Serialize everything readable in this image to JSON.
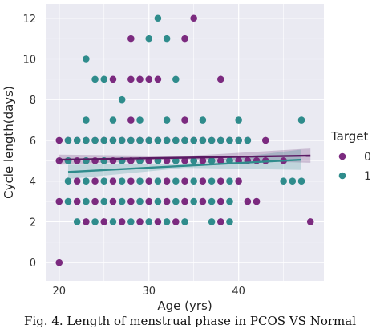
{
  "chart_data": {
    "type": "scatter",
    "xlabel": "Age (yrs)",
    "ylabel": "Cycle length(days)",
    "xlim": [
      18.5,
      49.5
    ],
    "ylim": [
      -0.9,
      12.7
    ],
    "x_ticks": [
      20,
      30,
      40
    ],
    "y_ticks": [
      0,
      2,
      4,
      6,
      8,
      10,
      12
    ],
    "grid": true,
    "background": "#eaeaf2",
    "legend": {
      "title": "Target",
      "placement": "right"
    },
    "series": [
      {
        "name": "0",
        "color": "#7b2a7f",
        "points": [
          [
            20,
            6
          ],
          [
            21,
            6
          ],
          [
            22,
            6
          ],
          [
            23,
            6
          ],
          [
            24,
            6
          ],
          [
            25,
            6
          ],
          [
            26,
            6
          ],
          [
            27,
            6
          ],
          [
            28,
            6
          ],
          [
            29,
            6
          ],
          [
            30,
            6
          ],
          [
            31,
            6
          ],
          [
            32,
            6
          ],
          [
            33,
            6
          ],
          [
            34,
            6
          ],
          [
            35,
            6
          ],
          [
            36,
            6
          ],
          [
            37,
            6
          ],
          [
            38,
            6
          ],
          [
            39,
            6
          ],
          [
            40,
            6
          ],
          [
            41,
            6
          ],
          [
            43,
            6
          ],
          [
            20,
            5
          ],
          [
            21,
            5
          ],
          [
            22,
            5
          ],
          [
            23,
            5
          ],
          [
            24,
            5
          ],
          [
            25,
            5
          ],
          [
            26,
            5
          ],
          [
            27,
            5
          ],
          [
            28,
            5
          ],
          [
            29,
            5
          ],
          [
            30,
            5
          ],
          [
            31,
            5
          ],
          [
            32,
            5
          ],
          [
            33,
            5
          ],
          [
            34,
            5
          ],
          [
            35,
            5
          ],
          [
            36,
            5
          ],
          [
            37,
            5
          ],
          [
            38,
            5
          ],
          [
            39,
            5
          ],
          [
            40,
            5
          ],
          [
            41,
            5
          ],
          [
            42,
            5
          ],
          [
            43,
            5
          ],
          [
            45,
            5
          ],
          [
            22,
            4
          ],
          [
            24,
            4
          ],
          [
            26,
            4
          ],
          [
            28,
            4
          ],
          [
            30,
            4
          ],
          [
            32,
            4
          ],
          [
            34,
            4
          ],
          [
            36,
            4
          ],
          [
            38,
            4
          ],
          [
            40,
            4
          ],
          [
            20,
            3
          ],
          [
            22,
            3
          ],
          [
            24,
            3
          ],
          [
            26,
            3
          ],
          [
            28,
            3
          ],
          [
            30,
            3
          ],
          [
            32,
            3
          ],
          [
            34,
            3
          ],
          [
            36,
            3
          ],
          [
            38,
            3
          ],
          [
            41,
            3
          ],
          [
            42,
            3
          ],
          [
            23,
            2
          ],
          [
            25,
            2
          ],
          [
            27,
            2
          ],
          [
            29,
            2
          ],
          [
            31,
            2
          ],
          [
            33,
            2
          ],
          [
            38,
            2
          ],
          [
            48,
            2
          ],
          [
            20,
            0
          ],
          [
            26,
            9
          ],
          [
            28,
            9
          ],
          [
            29,
            9
          ],
          [
            30,
            9
          ],
          [
            31,
            9
          ],
          [
            38,
            9
          ],
          [
            28,
            11
          ],
          [
            34,
            11
          ],
          [
            35,
            12
          ],
          [
            34,
            7
          ],
          [
            28,
            7
          ]
        ]
      },
      {
        "name": "1",
        "color": "#2f8c8c",
        "points": [
          [
            21,
            6
          ],
          [
            22,
            6
          ],
          [
            23,
            6
          ],
          [
            24,
            6
          ],
          [
            25,
            6
          ],
          [
            26,
            6
          ],
          [
            27,
            6
          ],
          [
            28,
            6
          ],
          [
            29,
            6
          ],
          [
            30,
            6
          ],
          [
            31,
            6
          ],
          [
            32,
            6
          ],
          [
            33,
            6
          ],
          [
            34,
            6
          ],
          [
            35,
            6
          ],
          [
            36,
            6
          ],
          [
            37,
            6
          ],
          [
            38,
            6
          ],
          [
            39,
            6
          ],
          [
            40,
            6
          ],
          [
            41,
            6
          ],
          [
            21,
            5
          ],
          [
            23,
            5
          ],
          [
            25,
            5
          ],
          [
            27,
            5
          ],
          [
            29,
            5
          ],
          [
            31,
            5
          ],
          [
            33,
            5
          ],
          [
            35,
            5
          ],
          [
            37,
            5
          ],
          [
            39,
            5
          ],
          [
            21,
            4
          ],
          [
            23,
            4
          ],
          [
            25,
            4
          ],
          [
            27,
            4
          ],
          [
            29,
            4
          ],
          [
            31,
            4
          ],
          [
            33,
            4
          ],
          [
            35,
            4
          ],
          [
            37,
            4
          ],
          [
            39,
            4
          ],
          [
            45,
            4
          ],
          [
            46,
            4
          ],
          [
            47,
            4
          ],
          [
            21,
            3
          ],
          [
            23,
            3
          ],
          [
            25,
            3
          ],
          [
            27,
            3
          ],
          [
            29,
            3
          ],
          [
            31,
            3
          ],
          [
            33,
            3
          ],
          [
            35,
            3
          ],
          [
            37,
            3
          ],
          [
            39,
            3
          ],
          [
            22,
            2
          ],
          [
            24,
            2
          ],
          [
            26,
            2
          ],
          [
            28,
            2
          ],
          [
            30,
            2
          ],
          [
            32,
            2
          ],
          [
            34,
            2
          ],
          [
            37,
            2
          ],
          [
            39,
            2
          ],
          [
            23,
            7
          ],
          [
            26,
            7
          ],
          [
            29,
            7
          ],
          [
            32,
            7
          ],
          [
            36,
            7
          ],
          [
            40,
            7
          ],
          [
            47,
            7
          ],
          [
            27,
            8
          ],
          [
            23,
            10
          ],
          [
            24,
            9
          ],
          [
            25,
            9
          ],
          [
            33,
            9
          ],
          [
            30,
            11
          ],
          [
            32,
            11
          ],
          [
            31,
            12
          ]
        ]
      }
    ],
    "regression_lines": [
      {
        "series": "0",
        "color": "#5a1a63",
        "x": [
          20,
          48
        ],
        "y": [
          5.05,
          5.25
        ]
      },
      {
        "series": "1",
        "color": "#2f8c8c",
        "x": [
          21,
          47
        ],
        "y": [
          4.45,
          5.05
        ]
      }
    ]
  },
  "caption": "Fig. 4. Length of menstrual phase in PCOS VS Normal"
}
